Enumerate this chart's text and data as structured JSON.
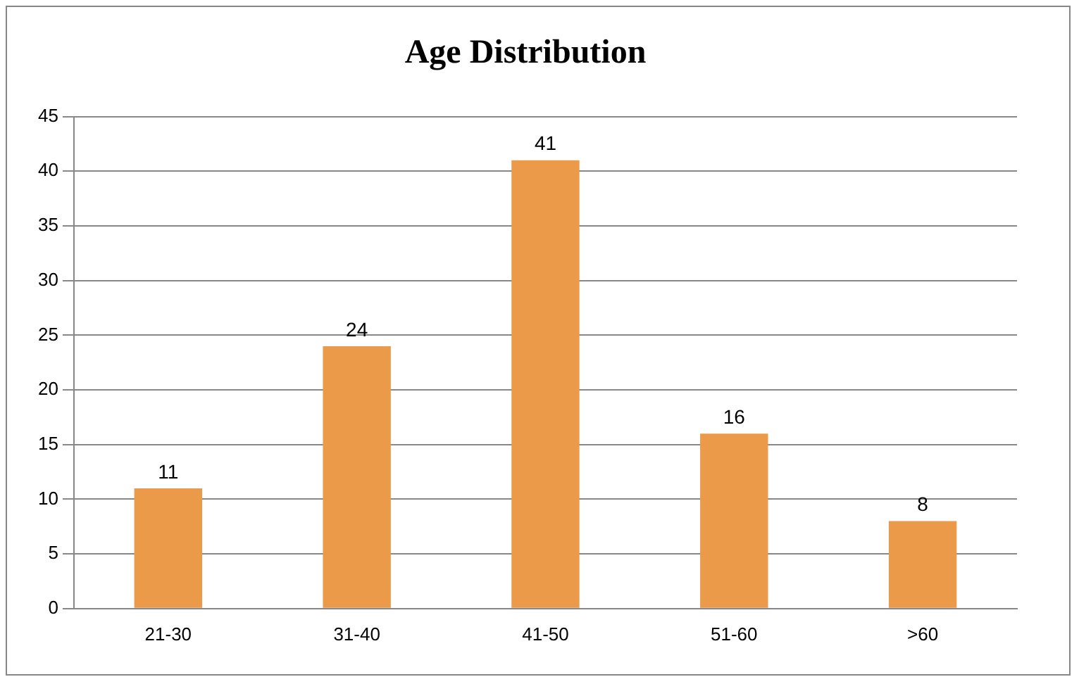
{
  "chart_data": {
    "type": "bar",
    "title": "Age Distribution",
    "categories": [
      "21-30",
      "31-40",
      "41-50",
      "51-60",
      ">60"
    ],
    "values": [
      11,
      24,
      41,
      16,
      8
    ],
    "color": "#eb9a4a",
    "ylim": [
      0,
      45
    ],
    "yticks": [
      0,
      5,
      10,
      15,
      20,
      25,
      30,
      35,
      40,
      45
    ],
    "grid": "y",
    "data_labels": true
  }
}
